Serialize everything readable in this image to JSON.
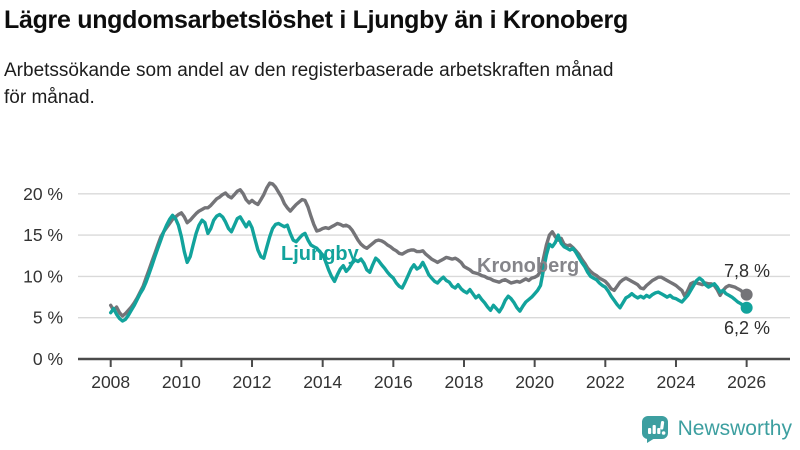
{
  "title": "Lägre ungdomsarbetslöshet i Ljungby än i Kronoberg",
  "subtitle_lines": [
    "Arbetssökande som andel av den registerbaserade arbetskraften månad",
    "för månad."
  ],
  "branding": {
    "name": "Newsworthy",
    "logo_color": "#3d9fa0"
  },
  "colors": {
    "ljungby_line": "#12a39c",
    "kronoberg_line": "#747478",
    "kronoberg_label": "#85858a",
    "grid": "#d9d9d9",
    "axis": "#4b4b4b",
    "tick_text": "#333333"
  },
  "chart_data": {
    "type": "line",
    "title": "Lägre ungdomsarbetslöshet i Ljungby än i Kronoberg",
    "subtitle": "Arbetssökande som andel av den registerbaserade arbetskraften månad för månad.",
    "x_start_year": 2008,
    "x_step_months": 1,
    "x_end_year": 2026,
    "ylim": [
      0,
      22
    ],
    "grid": true,
    "y_ticks": [
      {
        "value": 0,
        "label": "0 %"
      },
      {
        "value": 5,
        "label": "5 %"
      },
      {
        "value": 10,
        "label": "10 %"
      },
      {
        "value": 15,
        "label": "15 %"
      },
      {
        "value": 20,
        "label": "20 %"
      }
    ],
    "x_ticks": [
      {
        "value": 2008,
        "label": "2008"
      },
      {
        "value": 2010,
        "label": "2010"
      },
      {
        "value": 2012,
        "label": "2012"
      },
      {
        "value": 2014,
        "label": "2014"
      },
      {
        "value": 2016,
        "label": "2016"
      },
      {
        "value": 2018,
        "label": "2018"
      },
      {
        "value": 2020,
        "label": "2020"
      },
      {
        "value": 2022,
        "label": "2022"
      },
      {
        "value": 2024,
        "label": "2024"
      },
      {
        "value": 2026,
        "label": "2026"
      }
    ],
    "series": [
      {
        "name": "Kronoberg",
        "color": "#747478",
        "label_color": "#85858a",
        "end_label": "7,8 %",
        "end_value": 7.8,
        "values": [
          6.5,
          5.9,
          6.3,
          5.6,
          5.2,
          5.5,
          5.9,
          6.3,
          6.8,
          7.4,
          8.1,
          8.8,
          9.8,
          10.8,
          11.8,
          12.8,
          13.8,
          14.8,
          15.4,
          15.9,
          16.4,
          16.9,
          17.2,
          17.5,
          17.7,
          17.2,
          16.5,
          16.8,
          17.2,
          17.6,
          17.9,
          18.1,
          18.3,
          18.3,
          18.6,
          19.0,
          19.4,
          19.6,
          19.9,
          20.1,
          19.7,
          19.5,
          19.9,
          20.3,
          20.5,
          20.0,
          19.3,
          18.9,
          19.2,
          18.9,
          18.7,
          19.3,
          19.9,
          20.7,
          21.3,
          21.2,
          20.8,
          20.2,
          19.6,
          18.8,
          18.3,
          17.9,
          18.3,
          18.7,
          19.0,
          19.3,
          19.2,
          18.4,
          17.3,
          16.3,
          15.5,
          15.6,
          15.8,
          15.9,
          15.8,
          16.0,
          16.2,
          16.4,
          16.3,
          16.1,
          16.2,
          16.0,
          15.6,
          15.0,
          14.4,
          13.9,
          13.6,
          13.4,
          13.7,
          14.0,
          14.3,
          14.4,
          14.3,
          14.1,
          13.8,
          13.6,
          13.3,
          13.1,
          12.8,
          12.7,
          12.9,
          13.1,
          13.2,
          13.2,
          13.0,
          13.0,
          13.1,
          12.7,
          12.4,
          12.1,
          11.9,
          11.7,
          11.9,
          12.1,
          12.3,
          12.2,
          12.1,
          12.2,
          12.0,
          11.7,
          11.2,
          11.0,
          10.8,
          10.5,
          10.4,
          10.3,
          10.1,
          10.0,
          9.8,
          9.7,
          9.5,
          9.4,
          9.3,
          9.5,
          9.6,
          9.4,
          9.2,
          9.3,
          9.4,
          9.3,
          9.5,
          9.7,
          9.5,
          9.8,
          9.9,
          10.1,
          10.6,
          12.2,
          13.8,
          15.0,
          15.4,
          14.8,
          14.4,
          14.6,
          13.9,
          13.7,
          13.8,
          13.5,
          13.1,
          12.7,
          12.1,
          11.6,
          11.0,
          10.6,
          10.3,
          10.1,
          9.8,
          9.6,
          9.4,
          9.0,
          8.5,
          8.3,
          8.8,
          9.3,
          9.6,
          9.8,
          9.6,
          9.4,
          9.2,
          9.0,
          8.6,
          8.5,
          8.9,
          9.2,
          9.5,
          9.7,
          9.9,
          9.9,
          9.7,
          9.5,
          9.3,
          9.1,
          8.9,
          8.6,
          8.3,
          7.6,
          8.3,
          9.1,
          9.3,
          9.2,
          9.1,
          9.0,
          9.2,
          9.1,
          9.1,
          8.9,
          8.4,
          7.7,
          8.3,
          8.7,
          8.9,
          8.8,
          8.7,
          8.5,
          8.3,
          8.0,
          7.8
        ]
      },
      {
        "name": "Ljungby",
        "color": "#12a39c",
        "label_color": "#12a39c",
        "end_label": "6,2 %",
        "end_value": 6.2,
        "values": [
          5.6,
          6.1,
          5.4,
          4.9,
          4.6,
          4.8,
          5.3,
          5.9,
          6.5,
          7.2,
          7.9,
          8.5,
          9.3,
          10.3,
          11.3,
          12.4,
          13.4,
          14.4,
          15.4,
          16.2,
          16.9,
          17.4,
          17.0,
          16.2,
          14.8,
          13.0,
          11.7,
          12.4,
          13.8,
          15.2,
          16.2,
          16.8,
          16.5,
          15.2,
          15.8,
          16.8,
          17.3,
          17.5,
          17.2,
          16.6,
          15.8,
          15.4,
          16.2,
          17.0,
          17.2,
          16.6,
          16.0,
          16.6,
          15.9,
          14.5,
          13.2,
          12.4,
          12.2,
          13.5,
          14.8,
          15.8,
          16.3,
          16.4,
          16.2,
          16.0,
          16.2,
          15.2,
          14.4,
          14.2,
          14.6,
          15.0,
          15.2,
          14.4,
          13.8,
          13.6,
          13.4,
          13.0,
          12.6,
          11.8,
          10.8,
          10.0,
          9.4,
          10.2,
          10.9,
          11.3,
          10.6,
          11.0,
          11.6,
          12.0,
          11.8,
          12.1,
          11.6,
          10.8,
          10.5,
          11.4,
          12.2,
          11.9,
          11.4,
          11.0,
          10.5,
          10.1,
          9.8,
          9.2,
          8.8,
          8.6,
          9.3,
          10.1,
          10.9,
          11.4,
          10.9,
          11.1,
          11.7,
          11.0,
          10.2,
          9.8,
          9.4,
          9.2,
          9.6,
          9.9,
          9.5,
          9.3,
          8.8,
          8.6,
          9.0,
          8.5,
          8.2,
          8.0,
          8.4,
          7.9,
          7.4,
          7.7,
          7.2,
          6.8,
          6.3,
          5.9,
          6.5,
          6.1,
          5.7,
          6.3,
          7.1,
          7.6,
          7.3,
          6.8,
          6.2,
          5.8,
          6.4,
          6.9,
          7.2,
          7.5,
          7.9,
          8.3,
          8.9,
          10.8,
          12.6,
          13.9,
          13.6,
          14.1,
          15.0,
          14.0,
          13.6,
          13.4,
          13.2,
          13.4,
          12.9,
          12.3,
          11.7,
          11.2,
          10.5,
          10.0,
          9.8,
          9.6,
          9.2,
          8.9,
          8.7,
          8.2,
          7.6,
          7.1,
          6.6,
          6.2,
          6.8,
          7.4,
          7.6,
          7.9,
          7.6,
          7.4,
          7.6,
          7.4,
          7.7,
          7.5,
          7.8,
          8.0,
          8.1,
          7.9,
          7.7,
          7.5,
          7.7,
          7.4,
          7.3,
          7.1,
          6.9,
          7.3,
          7.7,
          8.3,
          8.9,
          9.5,
          9.8,
          9.5,
          9.0,
          8.7,
          8.9,
          9.1,
          8.7,
          8.1,
          8.3,
          7.9,
          7.7,
          7.5,
          7.2,
          6.9,
          6.7,
          6.4,
          6.2
        ]
      }
    ]
  }
}
